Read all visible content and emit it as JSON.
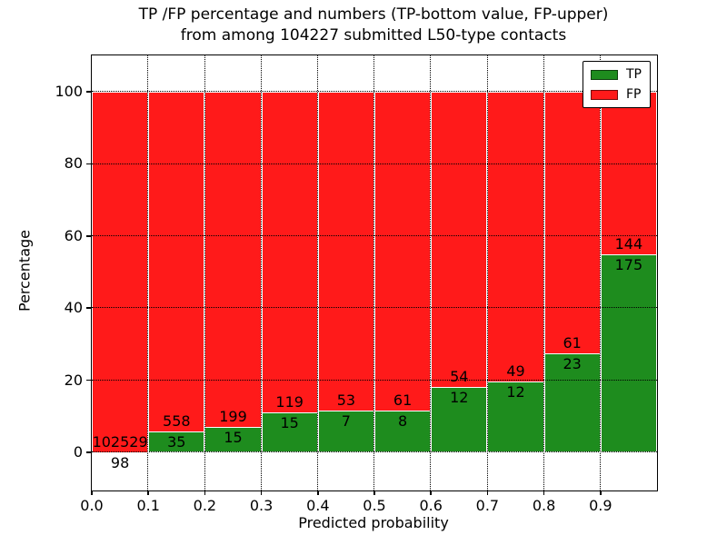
{
  "title": {
    "line1": "TP /FP percentage and numbers (TP-bottom value, FP-upper)",
    "line2": "from among 104227 submitted L50-type contacts"
  },
  "axes": {
    "xlabel": "Predicted probability",
    "ylabel": "Percentage"
  },
  "colors": {
    "tp_green": "#1e8c1e",
    "fp_red": "#ff1a1a",
    "grid": "#000000",
    "bar_edge": "#ffffff"
  },
  "chart_data": {
    "type": "bar",
    "stacked": true,
    "normalized_to_percent": true,
    "title": "TP /FP percentage and numbers (TP-bottom value, FP-upper) from among 104227 submitted L50-type contacts",
    "total_contacts": 104227,
    "xlabel": "Predicted probability",
    "ylabel": "Percentage",
    "x_bin_edges": [
      0.0,
      0.1,
      0.2,
      0.3,
      0.4,
      0.5,
      0.6,
      0.7,
      0.8,
      0.9,
      1.0
    ],
    "xtick_labels": [
      "0.0",
      "0.1",
      "0.2",
      "0.3",
      "0.4",
      "0.5",
      "0.6",
      "0.7",
      "0.8",
      "0.9"
    ],
    "yticks": [
      0,
      20,
      40,
      60,
      80,
      100
    ],
    "ytick_labels": [
      "0",
      "20",
      "40",
      "60",
      "80",
      "100"
    ],
    "ylim": [
      -10.3,
      110.3
    ],
    "grid": true,
    "legend_position": "upper right",
    "series": [
      {
        "name": "TP",
        "color": "#1e8c1e",
        "counts": [
          98,
          35,
          15,
          15,
          7,
          8,
          12,
          12,
          23,
          175
        ],
        "percent": [
          0.1,
          5.9,
          7.01,
          11.19,
          11.67,
          11.59,
          18.18,
          19.67,
          27.38,
          54.86
        ]
      },
      {
        "name": "FP",
        "color": "#ff1a1a",
        "counts": [
          102529,
          558,
          199,
          119,
          53,
          61,
          54,
          49,
          61,
          144
        ],
        "percent": [
          99.9,
          94.1,
          92.99,
          88.81,
          88.33,
          88.41,
          81.82,
          80.33,
          72.62,
          45.14
        ]
      }
    ]
  }
}
